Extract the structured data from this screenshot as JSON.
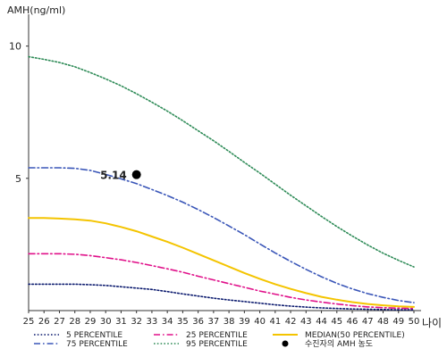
{
  "chart_data": {
    "type": "line",
    "title": "",
    "ylabel": "AMH(ng/ml)",
    "xlabel": "나이",
    "xlim": [
      25,
      50
    ],
    "ylim": [
      0,
      11
    ],
    "x_ticks": [
      "25",
      "26",
      "27",
      "28",
      "29",
      "30",
      "31",
      "32",
      "33",
      "34",
      "35",
      "36",
      "37",
      "38",
      "39",
      "40",
      "41",
      "42",
      "43",
      "44",
      "45",
      "46",
      "47",
      "48",
      "49",
      "50"
    ],
    "y_ticks": [
      {
        "value": 5,
        "label": "5"
      },
      {
        "value": 10,
        "label": "10"
      }
    ],
    "grid": false,
    "legend_position": "bottom",
    "series": [
      {
        "name": "5 PERCENTILE",
        "color": "#0b1a6e",
        "dash": "dot",
        "x": [
          25,
          26,
          27,
          28,
          29,
          30,
          31,
          32,
          33,
          34,
          35,
          36,
          37,
          38,
          39,
          40,
          41,
          42,
          43,
          44,
          45,
          46,
          47,
          48,
          49,
          50
        ],
        "y": [
          1.0,
          1.0,
          1.0,
          1.0,
          0.98,
          0.95,
          0.9,
          0.85,
          0.8,
          0.72,
          0.63,
          0.55,
          0.47,
          0.4,
          0.34,
          0.28,
          0.22,
          0.17,
          0.13,
          0.1,
          0.08,
          0.06,
          0.05,
          0.04,
          0.03,
          0.03
        ]
      },
      {
        "name": "25 PERCENTILE",
        "color": "#e0118a",
        "dash": "dashdot",
        "x": [
          25,
          26,
          27,
          28,
          29,
          30,
          31,
          32,
          33,
          34,
          35,
          36,
          37,
          38,
          39,
          40,
          41,
          42,
          43,
          44,
          45,
          46,
          47,
          48,
          49,
          50
        ],
        "y": [
          2.15,
          2.15,
          2.15,
          2.13,
          2.08,
          2.0,
          1.92,
          1.82,
          1.7,
          1.58,
          1.45,
          1.3,
          1.16,
          1.02,
          0.88,
          0.74,
          0.62,
          0.5,
          0.4,
          0.32,
          0.25,
          0.19,
          0.14,
          0.11,
          0.09,
          0.08
        ]
      },
      {
        "name": "MEDIAN(50 PERCENTILE)",
        "color": "#f4c400",
        "dash": "solid",
        "x": [
          25,
          26,
          27,
          28,
          29,
          30,
          31,
          32,
          33,
          34,
          35,
          36,
          37,
          38,
          39,
          40,
          41,
          42,
          43,
          44,
          45,
          46,
          47,
          48,
          49,
          50
        ],
        "y": [
          3.5,
          3.5,
          3.48,
          3.45,
          3.4,
          3.3,
          3.16,
          3.0,
          2.8,
          2.6,
          2.38,
          2.14,
          1.9,
          1.66,
          1.42,
          1.2,
          1.0,
          0.82,
          0.66,
          0.52,
          0.41,
          0.32,
          0.25,
          0.2,
          0.16,
          0.14
        ]
      },
      {
        "name": "75 PERCENTILE",
        "color": "#3a56b8",
        "dash": "dashdot",
        "x": [
          25,
          26,
          27,
          28,
          29,
          30,
          31,
          32,
          33,
          34,
          35,
          36,
          37,
          38,
          39,
          40,
          41,
          42,
          43,
          44,
          45,
          46,
          47,
          48,
          49,
          50
        ],
        "y": [
          5.4,
          5.4,
          5.4,
          5.38,
          5.3,
          5.15,
          4.98,
          4.8,
          4.58,
          4.35,
          4.1,
          3.82,
          3.52,
          3.2,
          2.87,
          2.52,
          2.18,
          1.86,
          1.56,
          1.28,
          1.03,
          0.82,
          0.64,
          0.5,
          0.38,
          0.3
        ]
      },
      {
        "name": "95 PERCENTILE",
        "color": "#2e8b57",
        "dash": "dot",
        "x": [
          25,
          26,
          27,
          28,
          29,
          30,
          31,
          32,
          33,
          34,
          35,
          36,
          37,
          38,
          39,
          40,
          41,
          42,
          43,
          44,
          45,
          46,
          47,
          48,
          49,
          50
        ],
        "y": [
          9.6,
          9.5,
          9.38,
          9.22,
          9.0,
          8.76,
          8.5,
          8.2,
          7.88,
          7.54,
          7.18,
          6.8,
          6.42,
          6.02,
          5.6,
          5.2,
          4.78,
          4.36,
          3.96,
          3.56,
          3.18,
          2.82,
          2.48,
          2.17,
          1.9,
          1.65
        ]
      }
    ],
    "marker": {
      "name": "수진자의 AMH 농도",
      "x": 32,
      "y": 5.14,
      "label": "5.14",
      "color": "#000000"
    },
    "legend_order": [
      [
        "5 PERCENTILE",
        "25 PERCENTILE",
        "MEDIAN(50 PERCENTILE)"
      ],
      [
        "75 PERCENTILE",
        "95 PERCENTILE",
        "수진자의 AMH 농도"
      ]
    ]
  }
}
